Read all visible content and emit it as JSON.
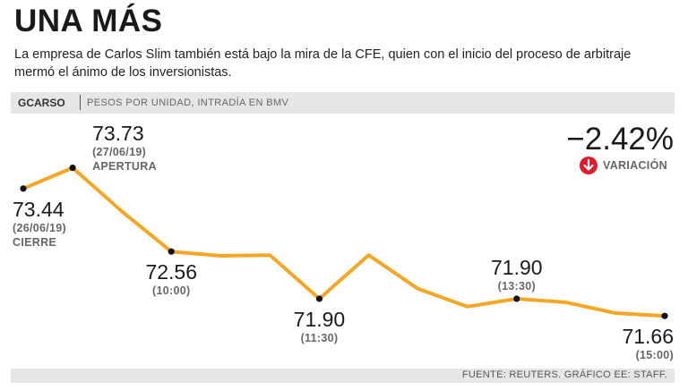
{
  "header": {
    "title": "UNA MÁS",
    "subtitle": "La empresa de Carlos Slim también está bajo la mira de la CFE, quien con el inicio del proceso de arbitraje mermó el ánimo de los inversionistas."
  },
  "ticker": {
    "symbol": "GCARSO",
    "description": "PESOS POR UNIDAD, INTRADÍA EN BMV"
  },
  "variation": {
    "value": "−2.42%",
    "label": "VARIACIÓN",
    "color": "#e21a2c"
  },
  "footer": {
    "source": "FUENTE: REUTERS. GRÁFICO EE: STAFF."
  },
  "colors": {
    "line": "#f5a623",
    "marker": "#111111"
  },
  "chart_data": {
    "type": "line",
    "title": "UNA MÁS",
    "ylabel": "Pesos por unidad",
    "ylim": [
      71.55,
      73.85
    ],
    "x": [
      0,
      1,
      2,
      3,
      4,
      5,
      6,
      7,
      8,
      9,
      10,
      11,
      12,
      13
    ],
    "values": [
      73.44,
      73.73,
      73.12,
      72.56,
      72.5,
      72.51,
      71.9,
      72.51,
      72.04,
      71.79,
      71.9,
      71.85,
      71.7,
      71.66
    ],
    "points": [
      {
        "i": 0,
        "value": "73.44",
        "date": "(26/06/19)",
        "note": "CIERRE"
      },
      {
        "i": 1,
        "value": "73.73",
        "date": "(27/06/19)",
        "note": "APERTURA"
      },
      {
        "i": 3,
        "value": "72.56",
        "date": "(10:00)",
        "note": ""
      },
      {
        "i": 6,
        "value": "71.90",
        "date": "(11:30)",
        "note": ""
      },
      {
        "i": 10,
        "value": "71.90",
        "date": "(13:30)",
        "note": ""
      },
      {
        "i": 13,
        "value": "71.66",
        "date": "(15:00)",
        "note": ""
      }
    ]
  }
}
